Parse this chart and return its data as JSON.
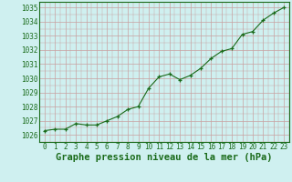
{
  "x": [
    0,
    1,
    2,
    3,
    4,
    5,
    6,
    7,
    8,
    9,
    10,
    11,
    12,
    13,
    14,
    15,
    16,
    17,
    18,
    19,
    20,
    21,
    22,
    23
  ],
  "y": [
    1026.3,
    1026.4,
    1026.4,
    1026.8,
    1026.7,
    1026.7,
    1027.0,
    1027.3,
    1027.8,
    1028.0,
    1029.3,
    1030.1,
    1030.3,
    1029.9,
    1030.2,
    1030.7,
    1031.4,
    1031.9,
    1032.1,
    1033.1,
    1033.3,
    1034.1,
    1034.6,
    1035.0
  ],
  "line_color": "#1a6b1a",
  "marker_color": "#1a6b1a",
  "bg_color": "#cff0f0",
  "grid_color": "#c8a0a0",
  "xlabel": "Graphe pression niveau de la mer (hPa)",
  "ylim": [
    1025.6,
    1035.4
  ],
  "xlim": [
    -0.5,
    23.5
  ],
  "yticks": [
    1026,
    1027,
    1028,
    1029,
    1030,
    1031,
    1032,
    1033,
    1034,
    1035
  ],
  "xticks": [
    0,
    1,
    2,
    3,
    4,
    5,
    6,
    7,
    8,
    9,
    10,
    11,
    12,
    13,
    14,
    15,
    16,
    17,
    18,
    19,
    20,
    21,
    22,
    23
  ],
  "tick_fontsize": 5.5,
  "xlabel_fontsize": 7.5,
  "minor_grid_color": "#c8a0a0"
}
